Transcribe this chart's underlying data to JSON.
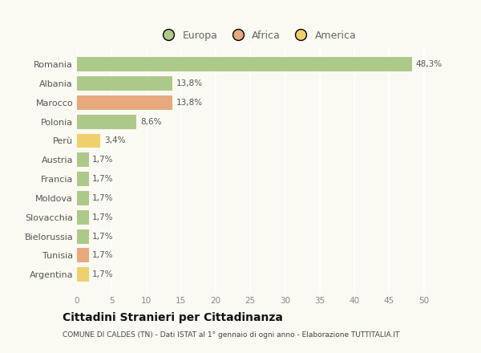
{
  "categories": [
    "Romania",
    "Albania",
    "Marocco",
    "Polonia",
    "Perù",
    "Austria",
    "Francia",
    "Moldova",
    "Slovacchia",
    "Bielorussia",
    "Tunisia",
    "Argentina"
  ],
  "values": [
    48.3,
    13.8,
    13.8,
    8.6,
    3.4,
    1.7,
    1.7,
    1.7,
    1.7,
    1.7,
    1.7,
    1.7
  ],
  "labels": [
    "48,3%",
    "13,8%",
    "13,8%",
    "8,6%",
    "3,4%",
    "1,7%",
    "1,7%",
    "1,7%",
    "1,7%",
    "1,7%",
    "1,7%",
    "1,7%"
  ],
  "continent": [
    "Europa",
    "Europa",
    "Africa",
    "Europa",
    "America",
    "Europa",
    "Europa",
    "Europa",
    "Europa",
    "Europa",
    "Africa",
    "America"
  ],
  "colors": {
    "Europa": "#adc98a",
    "Africa": "#e8a97e",
    "America": "#f0d06e"
  },
  "legend_order": [
    "Europa",
    "Africa",
    "America"
  ],
  "legend_colors": [
    "#adc98a",
    "#e8a97e",
    "#f0d06e"
  ],
  "title": "Cittadini Stranieri per Cittadinanza",
  "subtitle": "COMUNE DI CALDES (TN) - Dati ISTAT al 1° gennaio di ogni anno - Elaborazione TUTTITALIA.IT",
  "xlim": [
    0,
    52
  ],
  "xticks": [
    0,
    5,
    10,
    15,
    20,
    25,
    30,
    35,
    40,
    45,
    50
  ],
  "background_color": "#fafaf2",
  "grid_color": "#ffffff",
  "bar_height": 0.75
}
